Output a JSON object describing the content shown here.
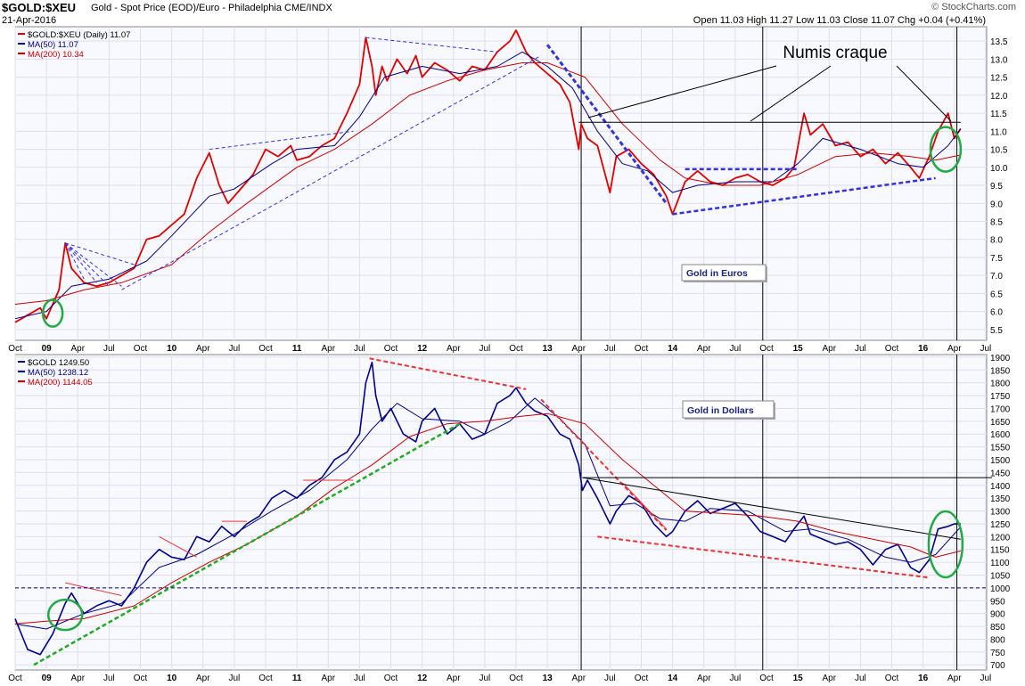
{
  "header": {
    "symbol": "$GOLD:$XEU",
    "description": "Gold - Spot Price (EOD)/Euro - Philadelphia  CME/INDX",
    "date": "21-Apr-2016",
    "ohlc": "Open 11.03  High 11.27  Low 11.03  Close 11.07  Chg +0.04 (+0.41%)",
    "brand": "© StockCharts.com"
  },
  "annotations": {
    "numis": "Numis craque",
    "euros_box": "Gold in Euros",
    "dollars_box": "Gold in Dollars"
  },
  "colors": {
    "price_red": "#dd0000",
    "ma50": "#000080",
    "ma200": "#cc0000",
    "price_navy": "#00008b",
    "trend_blue": "#3333dd",
    "trend_red": "#ee3333",
    "trend_green": "#22aa22",
    "circle_green": "#22aa44",
    "panel_bg": "#f8f8ff"
  },
  "x_axis": {
    "labels": [
      "Oct",
      "09",
      "Apr",
      "Jul",
      "Oct",
      "10",
      "Apr",
      "Jul",
      "Oct",
      "11",
      "Apr",
      "Jul",
      "Oct",
      "12",
      "Apr",
      "Jul",
      "Oct",
      "13",
      "Apr",
      "Jul",
      "Oct",
      "14",
      "Apr",
      "Jul",
      "Oct",
      "15",
      "Apr",
      "Jul",
      "Oct",
      "16",
      "Apr",
      "Jul"
    ],
    "bold": [
      "09",
      "10",
      "11",
      "12",
      "13",
      "14",
      "15",
      "16"
    ]
  },
  "chart_data": [
    {
      "type": "line",
      "legend": [
        "$GOLD:$XEU (Daily) 11.07",
        "MA(50) 11.07",
        "MA(200) 10.34"
      ],
      "y_ticks": [
        5.5,
        6.0,
        6.5,
        7.0,
        7.5,
        8.0,
        8.5,
        9.0,
        9.5,
        10.0,
        10.5,
        11.0,
        11.5,
        12.0,
        12.5,
        13.0,
        13.5
      ],
      "ylim": [
        5.2,
        13.9
      ],
      "series": [
        {
          "name": "$GOLD:$XEU",
          "x": [
            2008.75,
            2008.85,
            2008.95,
            2009.0,
            2009.1,
            2009.15,
            2009.2,
            2009.3,
            2009.4,
            2009.5,
            2009.6,
            2009.7,
            2009.8,
            2009.9,
            2010.0,
            2010.1,
            2010.2,
            2010.3,
            2010.38,
            2010.45,
            2010.55,
            2010.65,
            2010.75,
            2010.85,
            2010.95,
            2011.0,
            2011.1,
            2011.2,
            2011.3,
            2011.4,
            2011.5,
            2011.55,
            2011.6,
            2011.63,
            2011.68,
            2011.72,
            2011.8,
            2011.88,
            2011.95,
            2012.0,
            2012.1,
            2012.2,
            2012.3,
            2012.4,
            2012.5,
            2012.6,
            2012.7,
            2012.75,
            2012.83,
            2012.9,
            2013.0,
            2013.1,
            2013.18,
            2013.25,
            2013.27,
            2013.32,
            2013.4,
            2013.5,
            2013.55,
            2013.65,
            2013.75,
            2013.85,
            2013.95,
            2014.0,
            2014.1,
            2014.2,
            2014.3,
            2014.4,
            2014.5,
            2014.6,
            2014.7,
            2014.8,
            2014.9,
            2014.97,
            2015.05,
            2015.1,
            2015.2,
            2015.3,
            2015.4,
            2015.5,
            2015.6,
            2015.7,
            2015.8,
            2015.9,
            2015.97,
            2016.05,
            2016.12,
            2016.2,
            2016.25,
            2016.3
          ],
          "values": [
            5.7,
            5.9,
            6.1,
            5.8,
            6.6,
            7.9,
            7.2,
            6.8,
            6.7,
            6.8,
            7.0,
            7.2,
            8.0,
            8.1,
            8.4,
            8.7,
            9.7,
            10.4,
            9.5,
            9.0,
            9.4,
            9.8,
            10.5,
            10.3,
            10.6,
            10.2,
            10.3,
            10.6,
            10.8,
            11.5,
            12.3,
            13.6,
            12.8,
            12.0,
            12.8,
            12.4,
            13.0,
            12.6,
            13.1,
            12.5,
            12.9,
            12.7,
            12.4,
            12.8,
            12.7,
            13.2,
            13.5,
            13.8,
            13.2,
            12.9,
            12.6,
            12.3,
            11.8,
            10.5,
            11.2,
            10.8,
            10.6,
            9.3,
            10.3,
            10.5,
            10.1,
            9.8,
            9.2,
            8.7,
            9.6,
            9.9,
            9.6,
            9.5,
            9.7,
            9.8,
            9.6,
            9.5,
            9.7,
            10.0,
            11.5,
            10.9,
            11.2,
            10.6,
            10.7,
            10.3,
            10.5,
            10.1,
            10.4,
            10.0,
            9.7,
            10.3,
            11.0,
            11.5,
            10.8,
            11.07
          ]
        },
        {
          "name": "MA(50)",
          "x": [
            2008.75,
            2009.0,
            2009.2,
            2009.5,
            2009.8,
            2010.0,
            2010.3,
            2010.5,
            2010.8,
            2011.0,
            2011.3,
            2011.5,
            2011.7,
            2012.0,
            2012.3,
            2012.6,
            2012.8,
            2013.0,
            2013.2,
            2013.4,
            2013.6,
            2013.8,
            2014.0,
            2014.2,
            2014.5,
            2014.8,
            2015.0,
            2015.2,
            2015.5,
            2015.8,
            2016.0,
            2016.2,
            2016.3
          ],
          "values": [
            5.8,
            6.0,
            6.7,
            6.9,
            7.4,
            8.1,
            9.2,
            9.4,
            10.1,
            10.5,
            10.6,
            11.4,
            12.5,
            12.8,
            12.6,
            12.8,
            13.2,
            12.8,
            12.2,
            11.0,
            10.1,
            9.9,
            9.3,
            9.5,
            9.6,
            9.6,
            10.1,
            10.8,
            10.5,
            10.1,
            10.0,
            10.6,
            11.07
          ]
        },
        {
          "name": "MA(200)",
          "x": [
            2008.75,
            2009.0,
            2009.3,
            2009.6,
            2010.0,
            2010.3,
            2010.6,
            2011.0,
            2011.3,
            2011.6,
            2011.9,
            2012.2,
            2012.5,
            2012.8,
            2013.0,
            2013.3,
            2013.6,
            2013.9,
            2014.1,
            2014.4,
            2014.7,
            2015.0,
            2015.3,
            2015.6,
            2015.9,
            2016.1,
            2016.3
          ],
          "values": [
            6.2,
            6.3,
            6.6,
            6.8,
            7.3,
            8.2,
            9.0,
            10.0,
            10.5,
            11.2,
            12.0,
            12.4,
            12.7,
            12.9,
            12.9,
            12.5,
            11.2,
            10.2,
            9.7,
            9.5,
            9.5,
            9.8,
            10.3,
            10.4,
            10.3,
            10.2,
            10.34
          ]
        }
      ]
    },
    {
      "type": "line",
      "legend": [
        "$GOLD 1249.50",
        "MA(50) 1238.12",
        "MA(200) 1144.05"
      ],
      "y_ticks": [
        700,
        750,
        800,
        850,
        900,
        950,
        1000,
        1050,
        1100,
        1150,
        1200,
        1250,
        1300,
        1350,
        1400,
        1450,
        1500,
        1550,
        1600,
        1650,
        1700,
        1750,
        1800,
        1850,
        1900
      ],
      "ylim": [
        680,
        1910
      ],
      "series": [
        {
          "name": "$GOLD",
          "x": [
            2008.75,
            2008.85,
            2008.95,
            2009.05,
            2009.15,
            2009.2,
            2009.3,
            2009.4,
            2009.5,
            2009.6,
            2009.7,
            2009.8,
            2009.9,
            2010.0,
            2010.1,
            2010.2,
            2010.3,
            2010.4,
            2010.5,
            2010.6,
            2010.7,
            2010.8,
            2010.9,
            2011.0,
            2011.1,
            2011.2,
            2011.3,
            2011.4,
            2011.5,
            2011.55,
            2011.6,
            2011.63,
            2011.68,
            2011.75,
            2011.85,
            2011.95,
            2012.0,
            2012.1,
            2012.2,
            2012.3,
            2012.4,
            2012.5,
            2012.6,
            2012.7,
            2012.75,
            2012.83,
            2012.9,
            2013.0,
            2013.1,
            2013.18,
            2013.25,
            2013.28,
            2013.32,
            2013.4,
            2013.5,
            2013.55,
            2013.65,
            2013.75,
            2013.85,
            2013.95,
            2014.0,
            2014.1,
            2014.2,
            2014.3,
            2014.4,
            2014.5,
            2014.6,
            2014.7,
            2014.8,
            2014.9,
            2014.97,
            2015.05,
            2015.1,
            2015.2,
            2015.3,
            2015.4,
            2015.5,
            2015.6,
            2015.7,
            2015.8,
            2015.9,
            2015.97,
            2016.05,
            2016.12,
            2016.2,
            2016.25,
            2016.3
          ],
          "values": [
            880,
            760,
            740,
            820,
            940,
            980,
            900,
            930,
            950,
            930,
            1000,
            1100,
            1150,
            1120,
            1110,
            1200,
            1180,
            1240,
            1200,
            1250,
            1280,
            1350,
            1380,
            1350,
            1400,
            1430,
            1500,
            1530,
            1600,
            1800,
            1880,
            1750,
            1650,
            1700,
            1600,
            1570,
            1650,
            1700,
            1600,
            1640,
            1580,
            1600,
            1720,
            1750,
            1780,
            1720,
            1690,
            1670,
            1600,
            1580,
            1480,
            1380,
            1420,
            1350,
            1250,
            1300,
            1360,
            1330,
            1250,
            1200,
            1220,
            1300,
            1340,
            1290,
            1310,
            1330,
            1280,
            1220,
            1200,
            1180,
            1230,
            1280,
            1210,
            1190,
            1170,
            1180,
            1150,
            1090,
            1150,
            1170,
            1080,
            1060,
            1110,
            1230,
            1240,
            1250,
            1249.5
          ]
        },
        {
          "name": "MA(50)",
          "x": [
            2008.75,
            2009.0,
            2009.3,
            2009.6,
            2009.9,
            2010.2,
            2010.5,
            2010.8,
            2011.1,
            2011.4,
            2011.6,
            2011.8,
            2012.0,
            2012.3,
            2012.5,
            2012.7,
            2012.9,
            2013.1,
            2013.3,
            2013.5,
            2013.7,
            2013.9,
            2014.1,
            2014.3,
            2014.6,
            2014.9,
            2015.1,
            2015.4,
            2015.7,
            2015.9,
            2016.1,
            2016.3
          ],
          "values": [
            860,
            840,
            900,
            940,
            1080,
            1130,
            1210,
            1300,
            1380,
            1500,
            1620,
            1720,
            1660,
            1650,
            1600,
            1650,
            1740,
            1660,
            1560,
            1320,
            1330,
            1270,
            1260,
            1310,
            1300,
            1220,
            1230,
            1190,
            1120,
            1100,
            1130,
            1238.12
          ]
        },
        {
          "name": "MA(200)",
          "x": [
            2008.75,
            2009.0,
            2009.3,
            2009.7,
            2010.0,
            2010.3,
            2010.6,
            2011.0,
            2011.3,
            2011.6,
            2011.9,
            2012.2,
            2012.5,
            2012.8,
            2013.0,
            2013.3,
            2013.6,
            2013.9,
            2014.1,
            2014.4,
            2014.7,
            2015.0,
            2015.3,
            2015.6,
            2015.9,
            2016.1,
            2016.3
          ],
          "values": [
            860,
            870,
            880,
            930,
            1020,
            1100,
            1170,
            1280,
            1390,
            1480,
            1590,
            1640,
            1650,
            1670,
            1680,
            1640,
            1500,
            1380,
            1300,
            1290,
            1280,
            1260,
            1220,
            1190,
            1160,
            1120,
            1144.05
          ]
        }
      ]
    }
  ]
}
